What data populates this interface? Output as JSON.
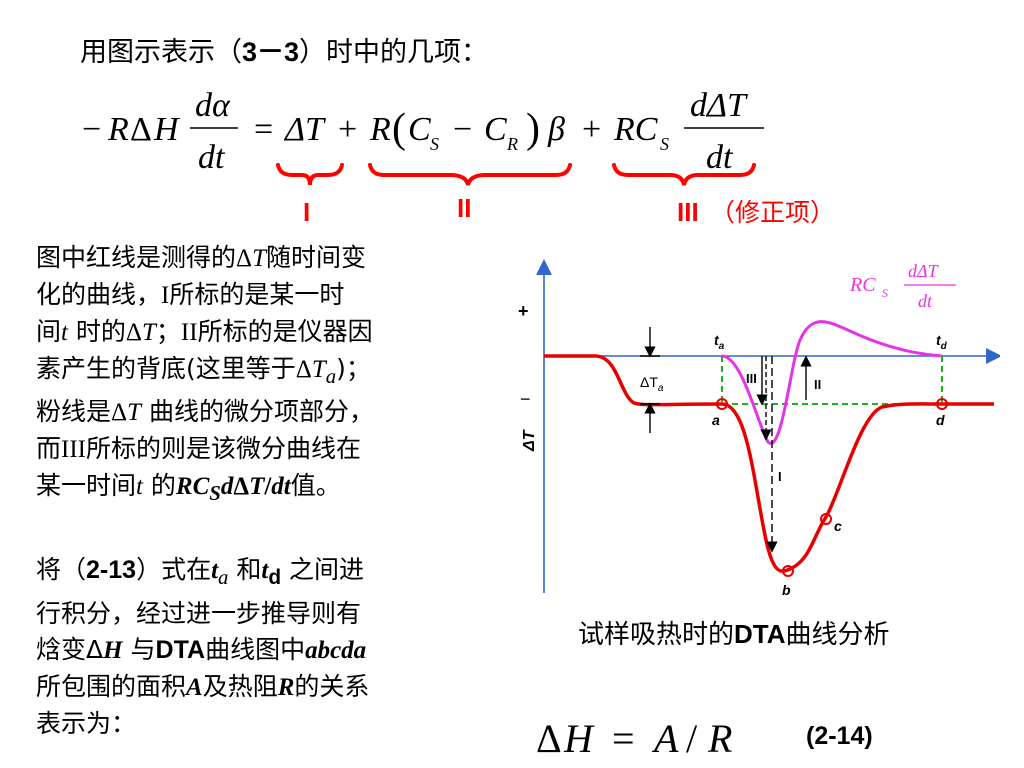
{
  "heading": {
    "text": "用图示表示（",
    "bold": "3－3",
    "tail": "）时中的几项："
  },
  "formula": {
    "lhs_minus": "−",
    "lhs_R": "R",
    "lhs_delta": "Δ",
    "lhs_H": "H",
    "frac1_num": "dα",
    "frac1_den": "dt",
    "equals": "=",
    "term1": "ΔT",
    "plus1": "+",
    "term2_R": "R",
    "term2_paren_open": "(",
    "term2_CS": "C",
    "term2_S": "S",
    "term2_minus": "−",
    "term2_CR": "C",
    "term2_R_sub": "R",
    "term2_paren_close": ")",
    "term2_beta": "β",
    "plus2": "+",
    "term3_RC": "RC",
    "term3_S": "S",
    "frac2_num": "dΔT",
    "frac2_den": "dt"
  },
  "brackets": {
    "label_I": "I",
    "label_II": "II",
    "label_III": "III",
    "label_III_note": "（修正项）",
    "color": "#ff0000"
  },
  "paragraph1": {
    "lines": [
      [
        "图中红线是测得的",
        "Δ",
        "T",
        "随时间变"
      ],
      [
        "化的曲线，",
        "I",
        "所标的是某一时"
      ],
      [
        "间",
        "t",
        " 时的",
        "Δ",
        "T",
        "；",
        "II",
        "所标的是仪器因"
      ],
      [
        "素产生的背底(这里等于",
        "Δ",
        "T",
        "a",
        ")；"
      ],
      [
        "粉线是",
        "Δ",
        "T",
        " 曲线的微分项部分，"
      ],
      [
        "而",
        "III",
        "所标的则是该微分曲线在"
      ],
      [
        "某一时间",
        "t",
        " 的",
        "RC",
        "S",
        "d",
        "Δ",
        "T",
        "/",
        "dt",
        "值。"
      ]
    ]
  },
  "paragraph2": {
    "l1a": "将（",
    "l1b": "2-13",
    "l1c": "）式在",
    "l1d": "t",
    "l1e": "a",
    "l1f": " 和",
    "l1g": "t",
    "l1h": "d",
    "l1i": " 之间进",
    "l2": "行积分，经过进一步推导则有",
    "l3a": "焓变",
    "l3b": "Δ",
    "l3c": "H",
    "l3d": " 与",
    "l3e": "DTA",
    "l3f": "曲线图中",
    "l3g": "abcda",
    "l4a": "所包围的面积",
    "l4b": "A",
    "l4c": "及热阻",
    "l4d": "R",
    "l4e": "的关系",
    "l5": "表示为："
  },
  "chart": {
    "plus": "+",
    "minus": "−",
    "y_axis_label": "ΔT",
    "derivative_label_RC": "RC",
    "derivative_label_S": "S",
    "derivative_label_num": "dΔT",
    "derivative_label_den": "dt",
    "ta": "t",
    "ta_sub": "a",
    "td": "t",
    "td_sub": "d",
    "delta_Ta": "ΔT",
    "delta_Ta_sub": "a",
    "point_a": "a",
    "point_b": "b",
    "point_c": "c",
    "point_d": "d",
    "mark_I": "I",
    "mark_II": "II",
    "mark_III": "III",
    "colors": {
      "axis": "#3366cc",
      "dta_curve": "#e60000",
      "derivative_curve": "#e633e6",
      "guide": "#00aa00"
    }
  },
  "caption": {
    "a": "试样吸热时的",
    "b": "DTA",
    "c": "曲线分析"
  },
  "equation": {
    "delta": "Δ",
    "H": "H",
    "equals": "=",
    "A": "A",
    "slash": "/",
    "R": "R",
    "number": "(2-14)"
  }
}
